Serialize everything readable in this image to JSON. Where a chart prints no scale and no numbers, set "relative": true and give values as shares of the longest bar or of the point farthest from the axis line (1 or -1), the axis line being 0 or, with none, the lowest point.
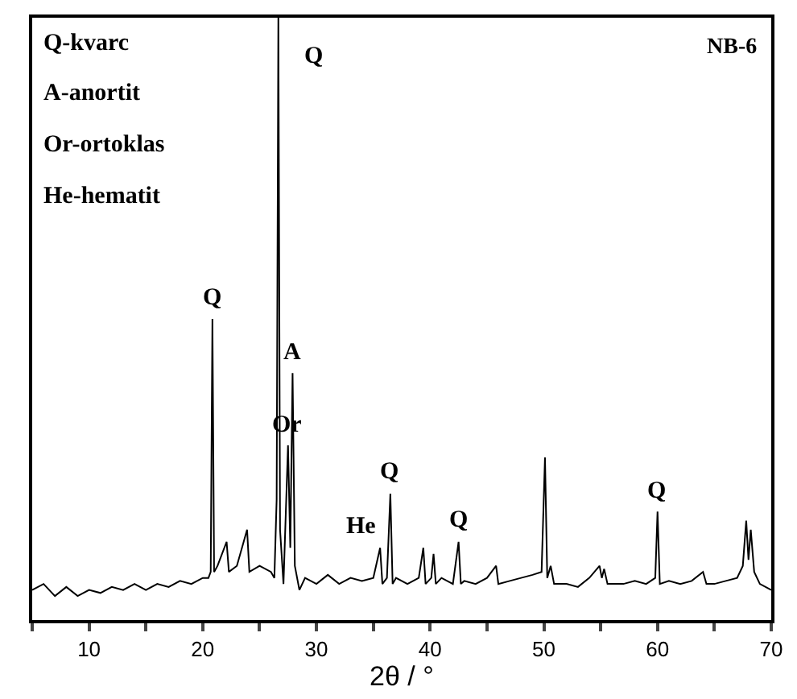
{
  "chart_data": {
    "type": "line",
    "relative": true,
    "xlabel": "2θ / °",
    "xlim": [
      5,
      70
    ],
    "xticks": [
      {
        "value": 5,
        "label": null
      },
      10,
      {
        "value": 15,
        "label": null
      },
      20,
      {
        "value": 25,
        "label": null
      },
      30,
      {
        "value": 35,
        "label": null
      },
      40,
      {
        "value": 45,
        "label": null
      },
      50,
      {
        "value": 55,
        "label": null
      },
      60,
      {
        "value": 65,
        "label": null
      },
      70
    ],
    "series": [
      {
        "color": "#000000",
        "x": [
          5,
          6,
          7,
          8,
          9,
          10,
          11,
          12,
          13,
          14,
          15,
          16,
          17,
          18,
          19,
          20,
          20.5,
          20.7,
          20.85,
          21.0,
          21.3,
          22.1,
          22.3,
          23,
          23.9,
          24.1,
          25,
          26,
          26.3,
          26.5,
          26.65,
          26.8,
          27.1,
          27.5,
          27.7,
          27.9,
          28.1,
          28.5,
          29,
          30,
          31,
          32,
          33,
          34,
          35,
          35.6,
          35.8,
          36.2,
          36.5,
          36.7,
          37,
          38,
          39,
          39.4,
          39.6,
          40.1,
          40.3,
          40.5,
          41,
          42,
          42.5,
          42.7,
          43,
          44,
          45,
          45.8,
          46,
          47,
          48,
          49,
          49.8,
          50.1,
          50.3,
          50.6,
          50.9,
          52,
          53,
          54,
          54.9,
          55.1,
          55.3,
          55.6,
          57,
          58,
          59,
          59.8,
          60,
          60.2,
          61,
          62,
          63,
          64,
          64.3,
          65,
          66,
          67,
          67.5,
          67.8,
          68.0,
          68.2,
          68.5,
          69,
          70
        ],
        "values": [
          0.05,
          0.06,
          0.04,
          0.055,
          0.04,
          0.05,
          0.045,
          0.055,
          0.05,
          0.06,
          0.05,
          0.06,
          0.055,
          0.065,
          0.06,
          0.07,
          0.07,
          0.08,
          0.5,
          0.08,
          0.09,
          0.13,
          0.08,
          0.09,
          0.15,
          0.08,
          0.09,
          0.08,
          0.07,
          0.2,
          1,
          0.15,
          0.06,
          0.29,
          0.12,
          0.41,
          0.09,
          0.05,
          0.07,
          0.06,
          0.075,
          0.06,
          0.07,
          0.065,
          0.07,
          0.12,
          0.06,
          0.07,
          0.21,
          0.06,
          0.07,
          0.06,
          0.07,
          0.12,
          0.06,
          0.07,
          0.11,
          0.06,
          0.07,
          0.06,
          0.13,
          0.06,
          0.065,
          0.06,
          0.07,
          0.09,
          0.06,
          0.065,
          0.07,
          0.075,
          0.08,
          0.27,
          0.07,
          0.09,
          0.06,
          0.06,
          0.055,
          0.07,
          0.09,
          0.07,
          0.085,
          0.06,
          0.06,
          0.065,
          0.06,
          0.07,
          0.18,
          0.06,
          0.065,
          0.06,
          0.065,
          0.08,
          0.06,
          0.06,
          0.065,
          0.07,
          0.09,
          0.165,
          0.1,
          0.15,
          0.08,
          0.06,
          0.05
        ]
      }
    ],
    "annotations": [
      "Q-kvarc",
      "A-anortit",
      "Or-ortoklas",
      "He-hematit",
      "NB-6",
      {
        "text": "Q",
        "x": 20.85,
        "y": 0.5
      },
      {
        "text": "Q",
        "x": 26.65,
        "y": 1
      },
      {
        "text": "A",
        "x": 27.9,
        "y": 0.41
      },
      {
        "text": "Or",
        "x": 27.5,
        "y": 0.29
      },
      {
        "text": "He",
        "x": 35.6,
        "y": 0.12
      },
      {
        "text": "Q",
        "x": 36.5,
        "y": 0.21
      },
      {
        "text": "Q",
        "x": 42.5,
        "y": 0.13
      },
      {
        "text": "Q",
        "x": 60,
        "y": 0.18
      }
    ]
  }
}
